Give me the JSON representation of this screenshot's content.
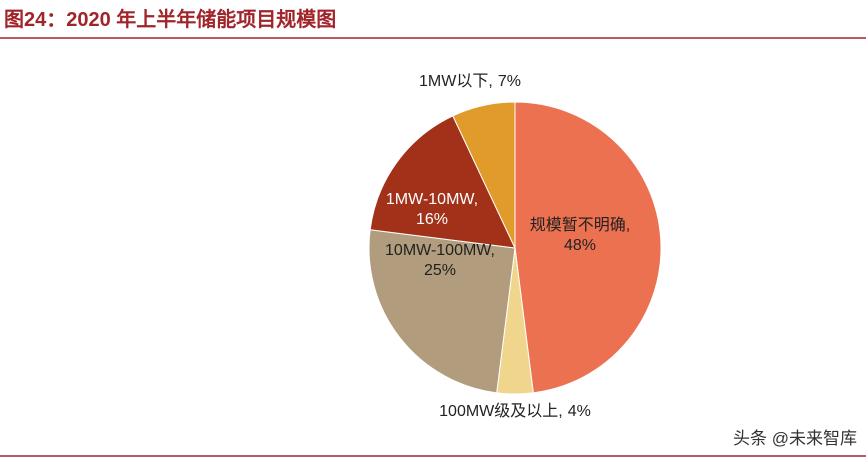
{
  "chart_data": {
    "type": "pie",
    "title": "图24：2020 年上半年储能项目规模图",
    "categories": [
      "规模暂不明确",
      "100MW级及以上",
      "10MW-100MW",
      "1MW-10MW",
      "1MW以下"
    ],
    "values": [
      48,
      4,
      25,
      16,
      7
    ],
    "value_labels": [
      "48%",
      "4%",
      "25%",
      "16%",
      "7%"
    ],
    "label_separator": ",",
    "colors": [
      "#ec7150",
      "#efd68c",
      "#b19c7d",
      "#a2311a",
      "#e09b2b"
    ],
    "watermark": "头条 @未来智库"
  }
}
